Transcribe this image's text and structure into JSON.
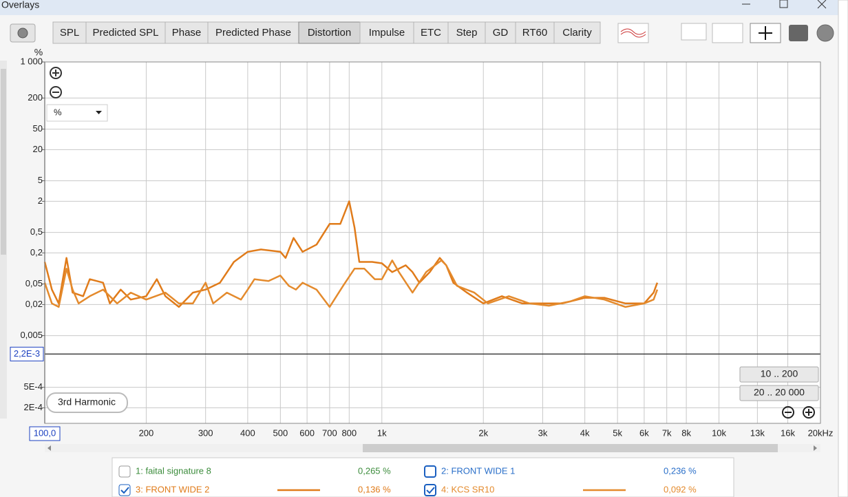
{
  "window": {
    "title": "Overlays"
  },
  "toolbar": {
    "tabs": [
      "SPL",
      "Predicted SPL",
      "Phase",
      "Predicted Phase",
      "Distortion",
      "Impulse",
      "ETC",
      "Step",
      "GD",
      "RT60",
      "Clarity"
    ],
    "active": "Distortion"
  },
  "controls": {
    "zoom_low": "10 .. 200",
    "zoom_full": "20 .. 20 000"
  },
  "inactive_series": [
    {
      "name": "1: faital signature 8",
      "reading": "0,265 %",
      "color": "#3c8c3c",
      "checked": false
    },
    {
      "name": "2: FRONT WIDE 1",
      "reading": "0,236 %",
      "color": "#2a6fc9",
      "checked": false
    }
  ],
  "chart_data": {
    "type": "line",
    "ylabel": "%",
    "harmonic": "3rd Harmonic",
    "xscale": "log",
    "yscale": "log",
    "grid": true,
    "xlim": [
      100,
      20000
    ],
    "ylim": [
      0.0001,
      1000
    ],
    "xticks": [
      200,
      300,
      400,
      500,
      600,
      700,
      800,
      {
        "value": 1000,
        "label": "1k"
      },
      {
        "value": 2000,
        "label": "2k"
      },
      {
        "value": 3000,
        "label": "3k"
      },
      {
        "value": 4000,
        "label": "4k"
      },
      {
        "value": 5000,
        "label": "5k"
      },
      {
        "value": 6000,
        "label": "6k"
      },
      {
        "value": 7000,
        "label": "7k"
      },
      {
        "value": 8000,
        "label": "8k"
      },
      {
        "value": 10000,
        "label": "10k"
      },
      {
        "value": 13000,
        "label": "13k"
      },
      {
        "value": 16000,
        "label": "16k"
      },
      {
        "value": 20000,
        "label": "20kHz"
      }
    ],
    "yticks": [
      {
        "value": 1000,
        "label": "1 000"
      },
      200,
      50,
      20,
      5,
      2,
      {
        "value": 0.5,
        "label": "0,5"
      },
      {
        "value": 0.2,
        "label": "0,2"
      },
      {
        "value": 0.05,
        "label": "0,05"
      },
      {
        "value": 0.02,
        "label": "0,02"
      },
      {
        "value": 0.005,
        "label": "0,005"
      },
      {
        "value": 0.0005,
        "label": "5E-4"
      },
      {
        "value": 0.0002,
        "label": "2E-4"
      }
    ],
    "cursor": {
      "x": 100,
      "x_label": "100,0",
      "y": 0.0022,
      "y_label": "2,2E-3"
    },
    "series": [
      {
        "name": "3: FRONT WIDE 2",
        "reading": "0,136 %",
        "color": "#e07b1a",
        "checked": true,
        "x": [
          100,
          105,
          110,
          116,
          121,
          130,
          136,
          149,
          156,
          168,
          180,
          200,
          215,
          228,
          250,
          275,
          300,
          331,
          364,
          400,
          438,
          500,
          518,
          547,
          582,
          640,
          700,
          753,
          800,
          830,
          857,
          936,
          1000,
          1073,
          1177,
          1233,
          1292,
          1387,
          1485,
          1552,
          1629,
          1788,
          2000,
          2270,
          2610,
          3000,
          3430,
          4000,
          4570,
          5280,
          6000,
          6400,
          6560
        ],
        "values": [
          0.134,
          0.039,
          0.021,
          0.16,
          0.034,
          0.029,
          0.062,
          0.053,
          0.021,
          0.039,
          0.025,
          0.029,
          0.062,
          0.029,
          0.018,
          0.034,
          0.039,
          0.053,
          0.134,
          0.21,
          0.233,
          0.21,
          0.16,
          0.39,
          0.21,
          0.29,
          0.73,
          0.73,
          2.0,
          0.62,
          0.134,
          0.134,
          0.126,
          0.085,
          0.115,
          0.085,
          0.053,
          0.085,
          0.16,
          0.115,
          0.053,
          0.034,
          0.021,
          0.029,
          0.021,
          0.021,
          0.021,
          0.027,
          0.027,
          0.021,
          0.021,
          0.034,
          0.053
        ]
      },
      {
        "name": "4: KCS SR10",
        "reading": "0,092 %",
        "color": "#e48a2c",
        "checked": true,
        "x": [
          100,
          105,
          110,
          116,
          121,
          126,
          136,
          149,
          164,
          180,
          200,
          228,
          250,
          275,
          300,
          316,
          347,
          382,
          400,
          419,
          461,
          500,
          530,
          556,
          582,
          640,
          700,
          767,
          830,
          887,
          953,
          1000,
          1073,
          1124,
          1233,
          1353,
          1501,
          1552,
          1671,
          1880,
          2064,
          2380,
          2740,
          3130,
          3620,
          4000,
          4570,
          5280,
          6000,
          6400,
          6560
        ],
        "values": [
          0.053,
          0.021,
          0.018,
          0.099,
          0.039,
          0.021,
          0.029,
          0.039,
          0.021,
          0.034,
          0.025,
          0.034,
          0.021,
          0.021,
          0.053,
          0.021,
          0.034,
          0.025,
          0.039,
          0.062,
          0.057,
          0.073,
          0.046,
          0.039,
          0.053,
          0.039,
          0.018,
          0.046,
          0.099,
          0.099,
          0.062,
          0.062,
          0.143,
          0.085,
          0.034,
          0.085,
          0.143,
          0.115,
          0.046,
          0.034,
          0.021,
          0.029,
          0.021,
          0.019,
          0.023,
          0.029,
          0.025,
          0.018,
          0.021,
          0.025,
          0.039
        ]
      }
    ]
  }
}
